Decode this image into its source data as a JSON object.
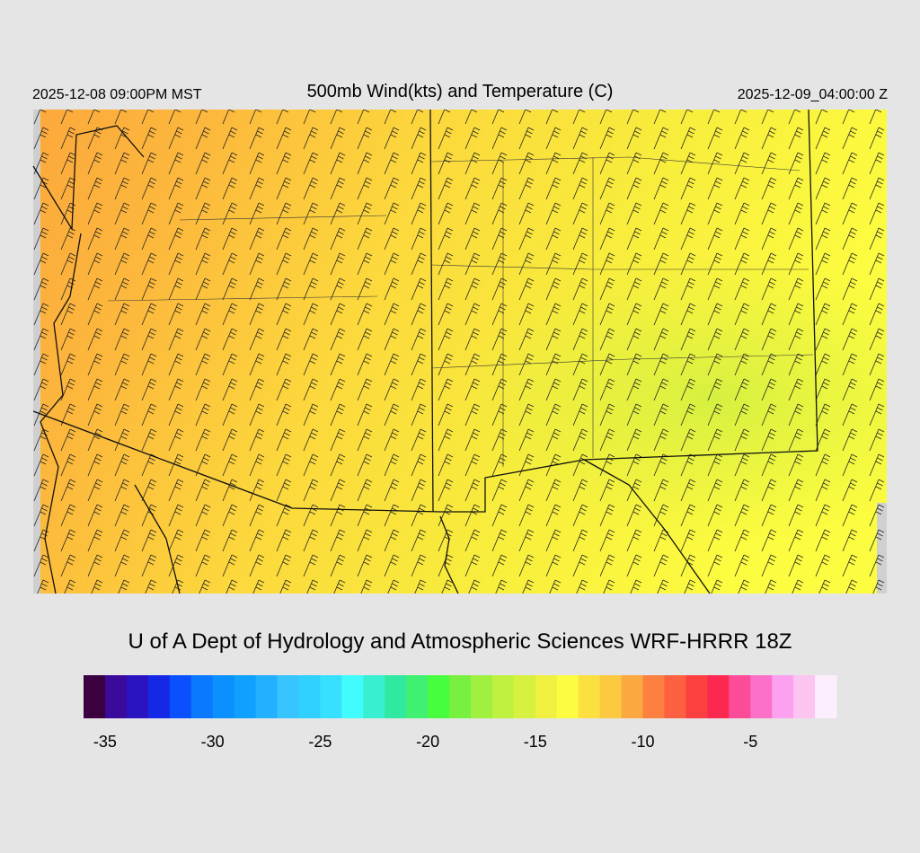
{
  "header": {
    "left": "2025-12-08 09:00PM MST",
    "title": "500mb Wind(kts) and Temperature (C)",
    "right": "2025-12-09_04:00:00 Z"
  },
  "footer": {
    "credit": "U of A Dept of Hydrology and Atmospheric Sciences WRF-HRRR 18Z"
  },
  "colorbar": {
    "range": [
      -36,
      -1
    ],
    "ticks": [
      -35,
      -30,
      -25,
      -20,
      -15,
      -10,
      -5
    ],
    "colors": [
      "#3a0040",
      "#3a0a9a",
      "#2a14c0",
      "#1428e6",
      "#0a50ff",
      "#0a78ff",
      "#0a90ff",
      "#10a0ff",
      "#22b0ff",
      "#38c4ff",
      "#30d0ff",
      "#38e0ff",
      "#40fcfc",
      "#38f0d0",
      "#30e8a0",
      "#40f070",
      "#48fc40",
      "#78f040",
      "#a0f040",
      "#c0f040",
      "#d8f040",
      "#f0f040",
      "#fcfc40",
      "#fce040",
      "#fcc840",
      "#fca840",
      "#fc8040",
      "#fc6040",
      "#fc4040",
      "#fc2850",
      "#fc4c98",
      "#fc70c8",
      "#fca0f0",
      "#fcc4f0",
      "#fceefc"
    ]
  }
}
